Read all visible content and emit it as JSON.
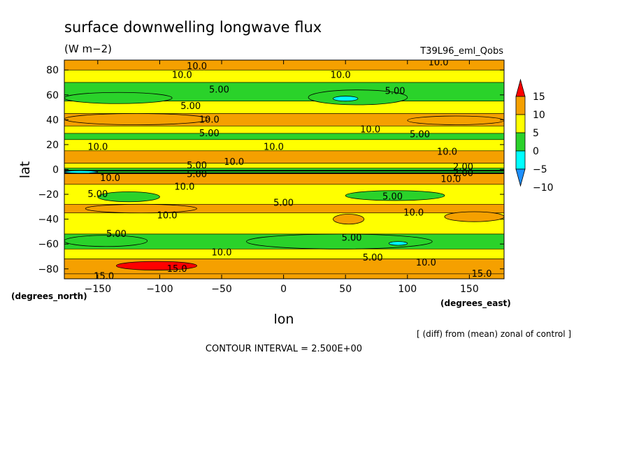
{
  "chart_data": {
    "type": "heatmap",
    "title": "surface downwelling longwave flux",
    "units": "(W m−2)",
    "dataset": "T39L96_eml_Qobs",
    "xlabel": "lon",
    "ylabel": "lat",
    "x_unit_label": "(degrees_east)",
    "y_unit_label": "(degrees_north)",
    "xlim": [
      -177,
      178
    ],
    "ylim": [
      -88,
      88
    ],
    "x_ticks": [
      -150,
      -100,
      -50,
      0,
      50,
      100,
      150
    ],
    "y_ticks": [
      80,
      60,
      40,
      20,
      0,
      -20,
      -40,
      -60,
      -80
    ],
    "x_tick_labels": [
      "−150",
      "−100",
      "−50",
      "0",
      "50",
      "100",
      "150"
    ],
    "y_tick_labels": [
      "80",
      "60",
      "40",
      "20",
      "0",
      "−20",
      "−40",
      "−60",
      "−80"
    ],
    "colorbar": {
      "levels": [
        15,
        10,
        5,
        0,
        -5,
        -10
      ],
      "labels": [
        "15",
        "10",
        "5",
        "0",
        "−5",
        "−10"
      ],
      "colors": [
        "#ff0000",
        "#f5a000",
        "#ffff00",
        "#2ad22a",
        "#00ffff",
        "#1e90ff"
      ]
    },
    "zonal_bands": [
      {
        "lat_from": 88,
        "lat_to": 80,
        "level": 10
      },
      {
        "lat_from": 80,
        "lat_to": 70,
        "level": 5
      },
      {
        "lat_from": 70,
        "lat_to": 55,
        "level": 0
      },
      {
        "lat_from": 55,
        "lat_to": 45,
        "level": 5
      },
      {
        "lat_from": 45,
        "lat_to": 35,
        "level": 10
      },
      {
        "lat_from": 35,
        "lat_to": 29,
        "level": 5
      },
      {
        "lat_from": 29,
        "lat_to": 24,
        "level": 0
      },
      {
        "lat_from": 24,
        "lat_to": 15,
        "level": 5
      },
      {
        "lat_from": 15,
        "lat_to": 5,
        "level": 10
      },
      {
        "lat_from": 5,
        "lat_to": 1,
        "level": 5
      },
      {
        "lat_from": 1,
        "lat_to": -3,
        "level": 0
      },
      {
        "lat_from": -3,
        "lat_to": -12,
        "level": 10
      },
      {
        "lat_from": -12,
        "lat_to": -28,
        "level": 5
      },
      {
        "lat_from": -28,
        "lat_to": -35,
        "level": 10
      },
      {
        "lat_from": -35,
        "lat_to": -52,
        "level": 5
      },
      {
        "lat_from": -52,
        "lat_to": -64,
        "level": 0
      },
      {
        "lat_from": -64,
        "lat_to": -72,
        "level": 5
      },
      {
        "lat_from": -72,
        "lat_to": -84,
        "level": 10
      },
      {
        "lat_from": -84,
        "lat_to": -88,
        "level": 10
      }
    ],
    "patches": [
      {
        "lon": [
          -177,
          -90
        ],
        "lat": [
          62,
          53
        ],
        "level": 0
      },
      {
        "lon": [
          20,
          100
        ],
        "lat": [
          64,
          52
        ],
        "level": 0
      },
      {
        "lon": [
          40,
          60
        ],
        "lat": [
          59,
          55
        ],
        "level": -5
      },
      {
        "lon": [
          -177,
          -60
        ],
        "lat": [
          45,
          36
        ],
        "level": 10
      },
      {
        "lon": [
          100,
          178
        ],
        "lat": [
          43,
          36
        ],
        "level": 10
      },
      {
        "lon": [
          -177,
          -150
        ],
        "lat": [
          -1,
          -3
        ],
        "level": -5
      },
      {
        "lon": [
          -150,
          -100
        ],
        "lat": [
          -18,
          -26
        ],
        "level": 0
      },
      {
        "lon": [
          50,
          130
        ],
        "lat": [
          -17,
          -25
        ],
        "level": 0
      },
      {
        "lon": [
          -160,
          -70
        ],
        "lat": [
          -28,
          -35
        ],
        "level": 10
      },
      {
        "lon": [
          40,
          65
        ],
        "lat": [
          -36,
          -44
        ],
        "level": 10
      },
      {
        "lon": [
          130,
          178
        ],
        "lat": [
          -34,
          -42
        ],
        "level": 10
      },
      {
        "lon": [
          -177,
          -110
        ],
        "lat": [
          -53,
          -62
        ],
        "level": 0
      },
      {
        "lon": [
          -30,
          120
        ],
        "lat": [
          -52,
          -64
        ],
        "level": 0
      },
      {
        "lon": [
          85,
          100
        ],
        "lat": [
          -58,
          -61
        ],
        "level": -5
      },
      {
        "lon": [
          -135,
          -70
        ],
        "lat": [
          -74,
          -81
        ],
        "level": 15
      }
    ],
    "contour_labels": [
      {
        "text": "10.0",
        "lon": -70,
        "lat": 83
      },
      {
        "text": "10.0",
        "lon": -82,
        "lat": 76
      },
      {
        "text": "10.0",
        "lon": 46,
        "lat": 76
      },
      {
        "text": "10.0",
        "lon": 125,
        "lat": 86
      },
      {
        "text": "5.00",
        "lon": -52,
        "lat": 64
      },
      {
        "text": "5.00",
        "lon": 90,
        "lat": 63
      },
      {
        "text": "5.00",
        "lon": -75,
        "lat": 51
      },
      {
        "text": "10.0",
        "lon": -60,
        "lat": 40
      },
      {
        "text": "10.0",
        "lon": 70,
        "lat": 32
      },
      {
        "text": "5.00",
        "lon": -60,
        "lat": 29
      },
      {
        "text": "5.00",
        "lon": 110,
        "lat": 28
      },
      {
        "text": "10.0",
        "lon": -150,
        "lat": 18
      },
      {
        "text": "10.0",
        "lon": -8,
        "lat": 18
      },
      {
        "text": "10.0",
        "lon": 132,
        "lat": 14
      },
      {
        "text": "10.0",
        "lon": -40,
        "lat": 6
      },
      {
        "text": "5.00",
        "lon": -70,
        "lat": 3
      },
      {
        "text": "5.00",
        "lon": -70,
        "lat": -4
      },
      {
        "text": "2.00",
        "lon": 145,
        "lat": 2
      },
      {
        "text": "2.00",
        "lon": 145,
        "lat": -3
      },
      {
        "text": "10.0",
        "lon": -140,
        "lat": -7
      },
      {
        "text": "10.0",
        "lon": 135,
        "lat": -8
      },
      {
        "text": "10.0",
        "lon": -80,
        "lat": -14
      },
      {
        "text": "5.00",
        "lon": -150,
        "lat": -20
      },
      {
        "text": "5.00",
        "lon": 88,
        "lat": -22
      },
      {
        "text": "5.00",
        "lon": 0,
        "lat": -27
      },
      {
        "text": "10.0",
        "lon": -94,
        "lat": -37
      },
      {
        "text": "10.0",
        "lon": 105,
        "lat": -35
      },
      {
        "text": "5.00",
        "lon": -135,
        "lat": -52
      },
      {
        "text": "5.00",
        "lon": 55,
        "lat": -55
      },
      {
        "text": "10.0",
        "lon": -50,
        "lat": -67
      },
      {
        "text": "5.00",
        "lon": 72,
        "lat": -71
      },
      {
        "text": "10.0",
        "lon": 115,
        "lat": -75
      },
      {
        "text": "15.0",
        "lon": -145,
        "lat": -86
      },
      {
        "text": "15.0",
        "lon": -86,
        "lat": -80
      },
      {
        "text": "15.0",
        "lon": 160,
        "lat": -84
      }
    ],
    "zero_contour_lat": [
      -1,
      -3
    ]
  },
  "annotations": {
    "contour_interval": "CONTOUR INTERVAL = 2.500E+00",
    "footnote": "[ (diff) from (mean) zonal of control ]"
  }
}
